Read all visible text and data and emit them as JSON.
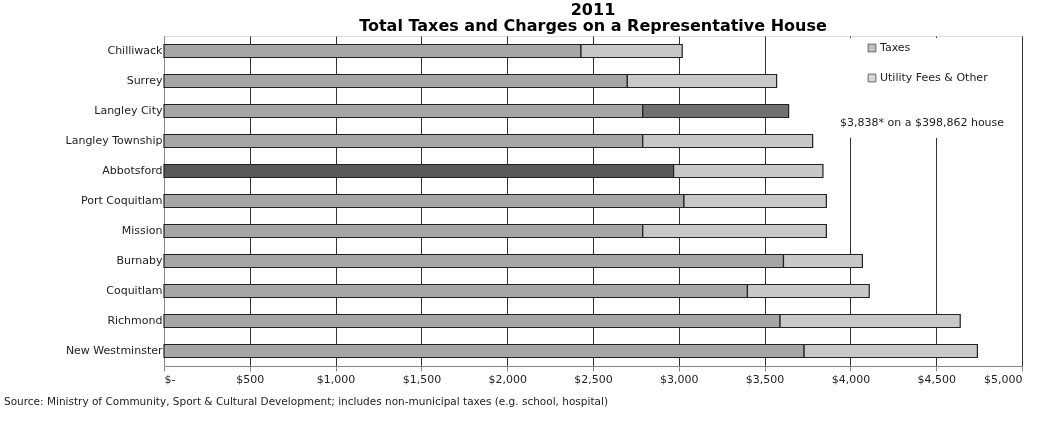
{
  "chart_data": {
    "type": "bar",
    "orientation": "horizontal",
    "stacked": true,
    "title": "2011",
    "subtitle": "Total Taxes and Charges on a Representative House",
    "categories": [
      "Chilliwack",
      "Surrey",
      "Langley City",
      "Langley Township",
      "Abbotsford",
      "Port Coquitlam",
      "Mission",
      "Burnaby",
      "Coquitlam",
      "Richmond",
      "New Westminster"
    ],
    "series": [
      {
        "name": "Taxes",
        "color": "#a6a6a6",
        "colors": [
          "#a6a6a6",
          "#a6a6a6",
          "#a6a6a6",
          "#a6a6a6",
          "#595959",
          "#a6a6a6",
          "#a6a6a6",
          "#a6a6a6",
          "#a6a6a6",
          "#a6a6a6",
          "#a6a6a6"
        ],
        "values": [
          2430,
          2700,
          2790,
          2790,
          2970,
          3030,
          2790,
          3610,
          3400,
          3590,
          3730
        ]
      },
      {
        "name": "Utility Fees & Other",
        "color": "#c8c8c8",
        "colors": [
          "#c8c8c8",
          "#c8c8c8",
          "#707070",
          "#c8c8c8",
          "#c8c8c8",
          "#c8c8c8",
          "#c8c8c8",
          "#c8c8c8",
          "#c8c8c8",
          "#c8c8c8",
          "#c8c8c8"
        ],
        "values": [
          590,
          870,
          850,
          990,
          870,
          830,
          1070,
          460,
          710,
          1050,
          1010
        ]
      }
    ],
    "xlim": [
      0,
      5000
    ],
    "xticks": [
      {
        "value": 0,
        "label": "$-"
      },
      {
        "value": 500,
        "label": "$500"
      },
      {
        "value": 1000,
        "label": "$1,000"
      },
      {
        "value": 1500,
        "label": "$1,500"
      },
      {
        "value": 2000,
        "label": "$2,000"
      },
      {
        "value": 2500,
        "label": "$2,500"
      },
      {
        "value": 3000,
        "label": "$3,000"
      },
      {
        "value": 3500,
        "label": "$3,500"
      },
      {
        "value": 4000,
        "label": "$4,000"
      },
      {
        "value": 4500,
        "label": "$4,500"
      },
      {
        "value": 5000,
        "label": "$5,000"
      }
    ],
    "grid": "x",
    "legend": "top right",
    "annotations": [
      "$3,838* on a $398,862 house",
      "Source: Ministry of Community, Sport &  Cultural Development; includes non-municipal taxes (e.g. school, hospital)"
    ]
  }
}
